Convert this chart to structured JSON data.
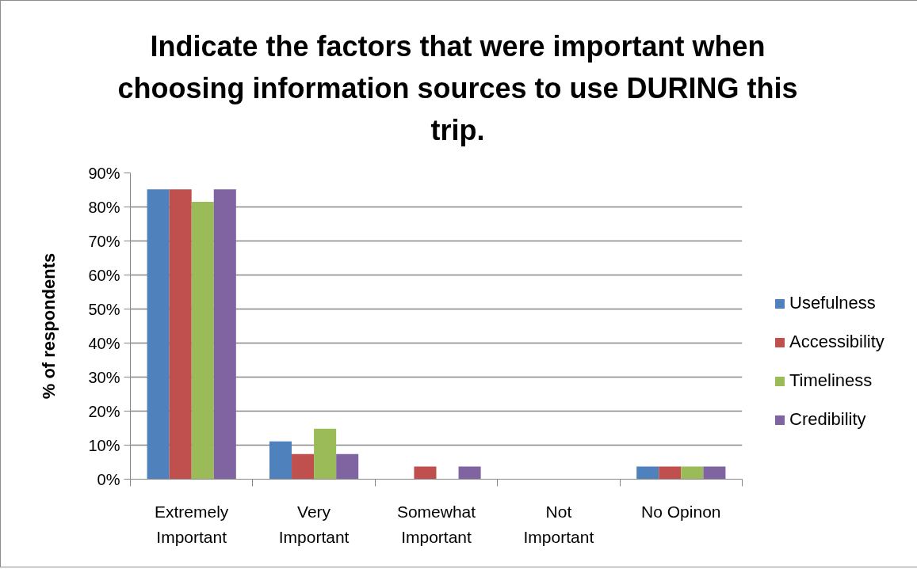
{
  "chart_data": {
    "type": "bar",
    "title": "Indicate the factors that were important when choosing information sources to use DURING this trip.",
    "ylabel": "% of respondents",
    "categories": [
      "Extremely Important",
      "Very Important",
      "Somewhat Important",
      "Not Important",
      "No Opinon"
    ],
    "series": [
      {
        "name": "Usefulness",
        "color": "#4f81bd",
        "values": [
          85.2,
          11.1,
          0,
          0,
          3.7
        ]
      },
      {
        "name": "Accessibility",
        "color": "#c0504d",
        "values": [
          85.2,
          7.4,
          3.7,
          0,
          3.7
        ]
      },
      {
        "name": "Timeliness",
        "color": "#9bbb59",
        "values": [
          81.5,
          14.8,
          0,
          0,
          3.7
        ]
      },
      {
        "name": "Credibility",
        "color": "#8064a2",
        "values": [
          85.2,
          7.4,
          3.7,
          0,
          3.7
        ]
      }
    ],
    "ylim": [
      0,
      90
    ],
    "yticks": [
      {
        "value": 0,
        "label": "0%"
      },
      {
        "value": 10,
        "label": "10%"
      },
      {
        "value": 20,
        "label": "20%"
      },
      {
        "value": 30,
        "label": "30%"
      },
      {
        "value": 40,
        "label": "40%"
      },
      {
        "value": 50,
        "label": "50%"
      },
      {
        "value": 60,
        "label": "60%"
      },
      {
        "value": 70,
        "label": "70%"
      },
      {
        "value": 80,
        "label": "80%"
      },
      {
        "value": 90,
        "label": "90%"
      }
    ],
    "grid": "y",
    "legend": "right"
  }
}
